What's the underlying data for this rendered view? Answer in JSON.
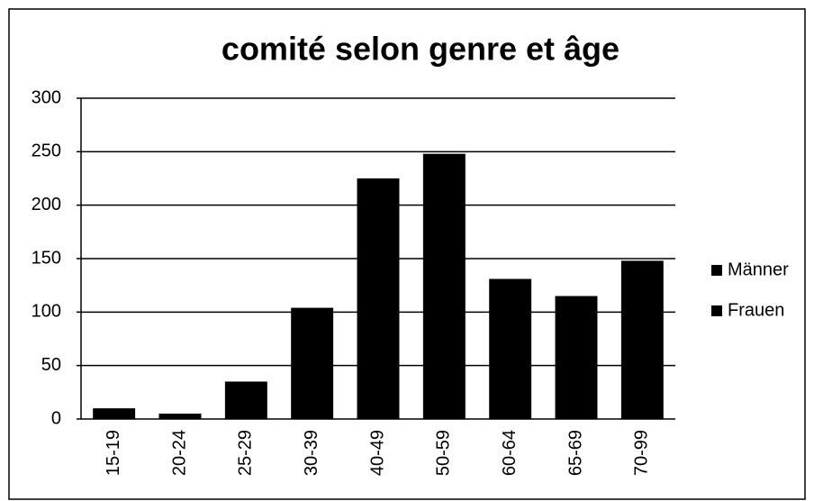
{
  "chart_data": {
    "type": "bar",
    "title": "comité selon genre et âge",
    "categories": [
      "15-19",
      "20-24",
      "25-29",
      "30-39",
      "40-49",
      "50-59",
      "60-64",
      "65-69",
      "70-99"
    ],
    "series": [
      {
        "name": "Männer",
        "color": "#000000",
        "values": [
          10,
          5,
          35,
          104,
          225,
          248,
          131,
          115,
          148
        ]
      },
      {
        "name": "Frauen",
        "color": "#000000",
        "values": [
          null,
          null,
          null,
          null,
          null,
          null,
          null,
          null,
          null
        ]
      }
    ],
    "ylim": [
      0,
      300
    ],
    "yticks": [
      0,
      50,
      100,
      150,
      200,
      250,
      300
    ],
    "grid": true,
    "legend": "right"
  }
}
